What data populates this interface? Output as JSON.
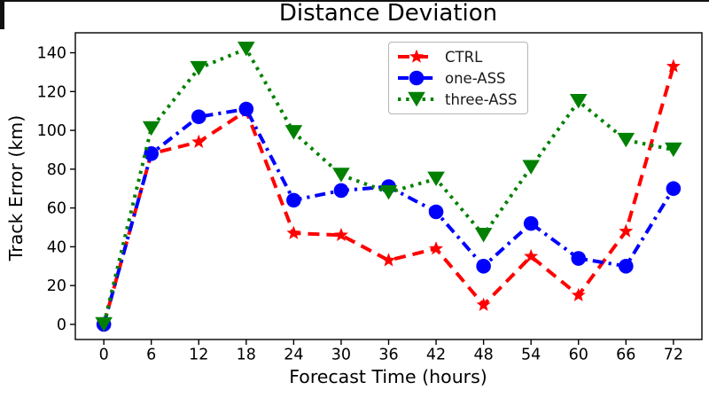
{
  "chart_data": {
    "type": "line",
    "title": "Distance Deviation",
    "xlabel": "Forecast Time (hours)",
    "ylabel": "Track Error (km)",
    "x": [
      0,
      6,
      12,
      18,
      24,
      30,
      36,
      42,
      48,
      54,
      60,
      66,
      72
    ],
    "x_ticks": [
      0,
      6,
      12,
      18,
      24,
      30,
      36,
      42,
      48,
      54,
      60,
      66,
      72
    ],
    "y_ticks": [
      0,
      20,
      40,
      60,
      80,
      100,
      120,
      140
    ],
    "xlim": [
      -3.6,
      75.6
    ],
    "ylim": [
      -7.8,
      150.3
    ],
    "grid": false,
    "legend_position": "upper-center-inside",
    "series": [
      {
        "name": "CTRL",
        "color": "#ff0000",
        "linestyle": "dashed",
        "marker": "star",
        "values": [
          0,
          88,
          94,
          110,
          47,
          46,
          33,
          39,
          10,
          35,
          15,
          48,
          133
        ]
      },
      {
        "name": "one-ASS",
        "color": "#0000ff",
        "linestyle": "dashdot",
        "marker": "circle",
        "values": [
          0,
          88,
          107,
          111,
          64,
          69,
          71,
          58,
          30,
          52,
          34,
          30,
          70
        ]
      },
      {
        "name": "three-ASS",
        "color": "#008000",
        "linestyle": "dotted",
        "marker": "triangle-down",
        "values": [
          0,
          101,
          132,
          142,
          99,
          77,
          68,
          75,
          46,
          81,
          115,
          95,
          90
        ]
      }
    ]
  }
}
